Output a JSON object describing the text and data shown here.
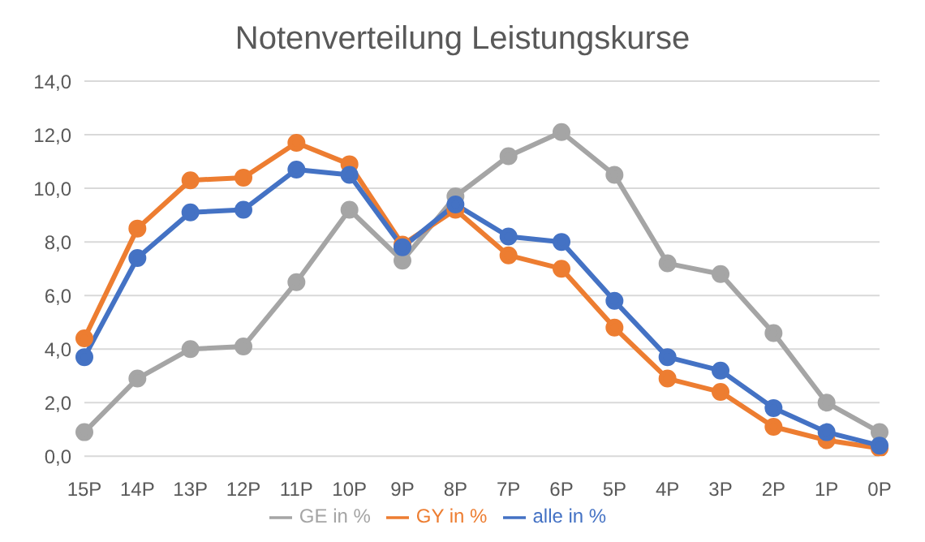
{
  "chart_data": {
    "type": "line",
    "title": "Notenverteilung Leistungskurse",
    "categories": [
      "15P",
      "14P",
      "13P",
      "12P",
      "11P",
      "10P",
      "9P",
      "8P",
      "7P",
      "6P",
      "5P",
      "4P",
      "3P",
      "2P",
      "1P",
      "0P"
    ],
    "series": [
      {
        "name": "alle in %",
        "color": "#4472c4",
        "values": [
          3.7,
          7.4,
          9.1,
          9.2,
          10.7,
          10.5,
          7.8,
          9.4,
          8.2,
          8.0,
          5.8,
          3.7,
          3.2,
          1.8,
          0.9,
          0.4
        ]
      },
      {
        "name": "GY in %",
        "color": "#ed7d31",
        "values": [
          4.4,
          8.5,
          10.3,
          10.4,
          11.7,
          10.9,
          7.9,
          9.2,
          7.5,
          7.0,
          4.8,
          2.9,
          2.4,
          1.1,
          0.6,
          0.3
        ]
      },
      {
        "name": "GE in %",
        "color": "#a5a5a5",
        "values": [
          0.9,
          2.9,
          4.0,
          4.1,
          6.5,
          9.2,
          7.3,
          9.7,
          11.2,
          12.1,
          10.5,
          7.2,
          6.8,
          4.6,
          2.0,
          0.9
        ]
      }
    ],
    "ylim": [
      0,
      14
    ],
    "yticks": [
      {
        "value": 0,
        "label": "0,0"
      },
      {
        "value": 2,
        "label": "2,0"
      },
      {
        "value": 4,
        "label": "4,0"
      },
      {
        "value": 6,
        "label": "6,0"
      },
      {
        "value": 8,
        "label": "8,0"
      },
      {
        "value": 10,
        "label": "10,0"
      },
      {
        "value": 12,
        "label": "12,0"
      },
      {
        "value": 14,
        "label": "14,0"
      }
    ],
    "grid": "y",
    "legend": "bottom",
    "marker": "circle",
    "line_style": "solid"
  }
}
